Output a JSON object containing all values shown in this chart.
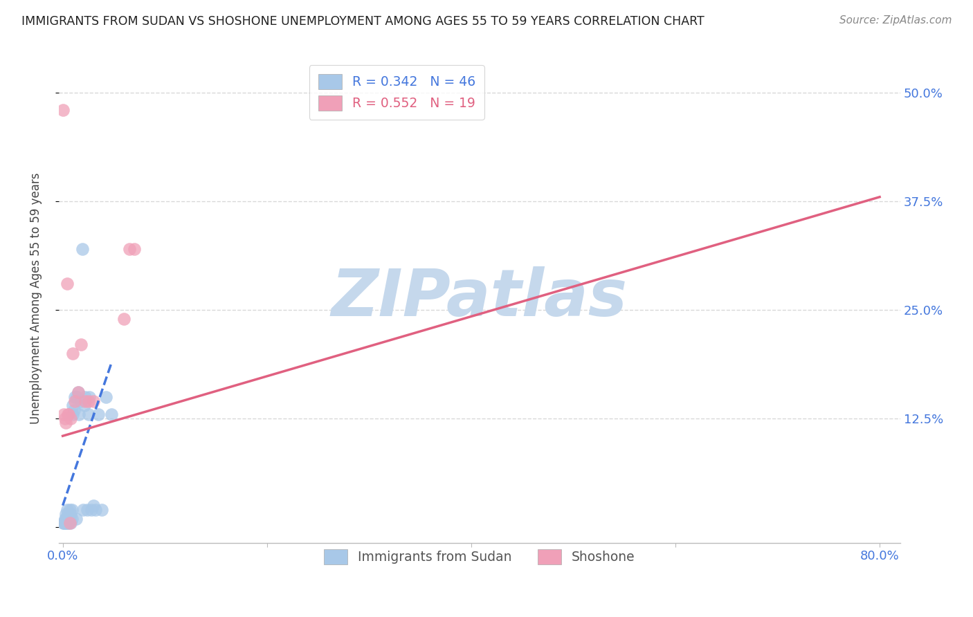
{
  "title": "IMMIGRANTS FROM SUDAN VS SHOSHONE UNEMPLOYMENT AMONG AGES 55 TO 59 YEARS CORRELATION CHART",
  "source": "Source: ZipAtlas.com",
  "ylabel": "Unemployment Among Ages 55 to 59 years",
  "xlim": [
    -0.004,
    0.82
  ],
  "ylim": [
    -0.018,
    0.545
  ],
  "yticks": [
    0.0,
    0.125,
    0.25,
    0.375,
    0.5
  ],
  "ytick_labels": [
    "",
    "12.5%",
    "25.0%",
    "37.5%",
    "50.0%"
  ],
  "xticks": [
    0.0,
    0.2,
    0.4,
    0.6,
    0.8
  ],
  "xtick_labels": [
    "0.0%",
    "",
    "",
    "",
    "80.0%"
  ],
  "blue_color": "#a8c8e8",
  "pink_color": "#f0a0b8",
  "blue_line_color": "#4477dd",
  "pink_line_color": "#e06080",
  "blue_line_style": "--",
  "pink_line_style": "-",
  "R_blue": 0.342,
  "N_blue": 46,
  "R_pink": 0.552,
  "N_pink": 19,
  "blue_scatter_x": [
    0.0005,
    0.001,
    0.0015,
    0.002,
    0.002,
    0.0025,
    0.003,
    0.003,
    0.003,
    0.004,
    0.004,
    0.004,
    0.005,
    0.005,
    0.005,
    0.006,
    0.006,
    0.007,
    0.007,
    0.008,
    0.008,
    0.009,
    0.009,
    0.01,
    0.01,
    0.011,
    0.012,
    0.013,
    0.014,
    0.015,
    0.016,
    0.018,
    0.019,
    0.02,
    0.021,
    0.022,
    0.024,
    0.025,
    0.026,
    0.028,
    0.03,
    0.032,
    0.035,
    0.038,
    0.042,
    0.048
  ],
  "blue_scatter_y": [
    0.005,
    0.005,
    0.005,
    0.005,
    0.01,
    0.005,
    0.005,
    0.01,
    0.015,
    0.005,
    0.01,
    0.02,
    0.005,
    0.01,
    0.015,
    0.005,
    0.01,
    0.01,
    0.02,
    0.005,
    0.015,
    0.01,
    0.02,
    0.13,
    0.14,
    0.135,
    0.15,
    0.01,
    0.15,
    0.155,
    0.13,
    0.145,
    0.32,
    0.02,
    0.14,
    0.15,
    0.02,
    0.13,
    0.15,
    0.02,
    0.025,
    0.02,
    0.13,
    0.02,
    0.15,
    0.13
  ],
  "pink_scatter_x": [
    0.0005,
    0.001,
    0.002,
    0.003,
    0.004,
    0.005,
    0.006,
    0.007,
    0.008,
    0.01,
    0.012,
    0.015,
    0.018,
    0.022,
    0.025,
    0.03,
    0.06,
    0.065,
    0.07
  ],
  "pink_scatter_y": [
    0.48,
    0.13,
    0.125,
    0.12,
    0.28,
    0.13,
    0.13,
    0.005,
    0.125,
    0.2,
    0.145,
    0.155,
    0.21,
    0.145,
    0.145,
    0.145,
    0.24,
    0.32,
    0.32
  ],
  "blue_trendline": [
    [
      0.0,
      0.025
    ],
    [
      0.048,
      0.19
    ]
  ],
  "pink_trendline": [
    [
      0.0,
      0.105
    ],
    [
      0.8,
      0.38
    ]
  ],
  "watermark": "ZIPatlas",
  "watermark_color": "#c5d8ec",
  "background_color": "#ffffff",
  "grid_color": "#d8d8d8",
  "title_color": "#222222",
  "axis_label_color": "#444444",
  "tick_color_blue": "#4477dd",
  "legend_text_color_blue": "#4477dd",
  "legend_text_color_pink": "#e06080"
}
